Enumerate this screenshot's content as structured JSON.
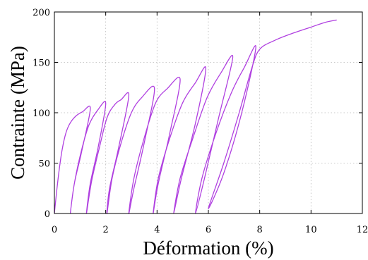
{
  "chart_data": {
    "type": "line",
    "title": "",
    "xlabel": "Déformation (%)",
    "ylabel": "Contrainte (MPa)",
    "xlim": [
      0,
      12
    ],
    "ylim": [
      0,
      200
    ],
    "xticks": [
      0,
      2,
      4,
      6,
      8,
      10,
      12
    ],
    "yticks": [
      0,
      50,
      100,
      150,
      200
    ],
    "x_tick_labels": [
      "0",
      "2",
      "4",
      "6",
      "8",
      "10",
      "12"
    ],
    "y_tick_labels": [
      "0",
      "50",
      "100",
      "150",
      "200"
    ],
    "grid": true,
    "legend": "none",
    "line_color": "#b040e0",
    "series": [
      {
        "values": [
          [
            0.0,
            0
          ],
          [
            0.08,
            20
          ],
          [
            0.18,
            42
          ],
          [
            0.3,
            63
          ],
          [
            0.45,
            80
          ],
          [
            0.62,
            90
          ],
          [
            0.85,
            97
          ],
          [
            1.1,
            101
          ],
          [
            1.4,
            104
          ],
          [
            1.05,
            60
          ],
          [
            0.78,
            30
          ],
          [
            0.62,
            0
          ],
          [
            0.78,
            30
          ],
          [
            1.05,
            62
          ],
          [
            1.35,
            88
          ],
          [
            1.7,
            103
          ],
          [
            2.0,
            109
          ],
          [
            1.7,
            65
          ],
          [
            1.4,
            30
          ],
          [
            1.25,
            0
          ],
          [
            1.45,
            32
          ],
          [
            1.75,
            65
          ],
          [
            2.05,
            95
          ],
          [
            2.35,
            108
          ],
          [
            2.6,
            113
          ],
          [
            2.9,
            117
          ],
          [
            2.5,
            65
          ],
          [
            2.15,
            25
          ],
          [
            2.05,
            0
          ],
          [
            2.25,
            35
          ],
          [
            2.6,
            70
          ],
          [
            3.0,
            100
          ],
          [
            3.4,
            115
          ],
          [
            3.9,
            124
          ],
          [
            3.5,
            70
          ],
          [
            3.1,
            25
          ],
          [
            2.9,
            0
          ],
          [
            3.1,
            35
          ],
          [
            3.5,
            75
          ],
          [
            3.95,
            110
          ],
          [
            4.4,
            124
          ],
          [
            4.9,
            133
          ],
          [
            4.5,
            80
          ],
          [
            4.05,
            30
          ],
          [
            3.85,
            0
          ],
          [
            4.05,
            35
          ],
          [
            4.5,
            75
          ],
          [
            5.0,
            110
          ],
          [
            5.5,
            130
          ],
          [
            5.9,
            144
          ],
          [
            5.5,
            90
          ],
          [
            4.95,
            35
          ],
          [
            4.65,
            0
          ],
          [
            4.9,
            35
          ],
          [
            5.4,
            75
          ],
          [
            5.95,
            115
          ],
          [
            6.5,
            140
          ],
          [
            6.95,
            155
          ],
          [
            6.4,
            95
          ],
          [
            5.85,
            35
          ],
          [
            5.5,
            0
          ],
          [
            5.75,
            35
          ],
          [
            6.3,
            80
          ],
          [
            6.9,
            120
          ],
          [
            7.4,
            145
          ],
          [
            7.85,
            165
          ],
          [
            7.3,
            100
          ],
          [
            6.6,
            40
          ],
          [
            6.0,
            5
          ],
          [
            6.6,
            50
          ],
          [
            7.2,
            100
          ],
          [
            7.7,
            145
          ],
          [
            8.0,
            163
          ],
          [
            8.6,
            172
          ],
          [
            9.3,
            179
          ],
          [
            10.0,
            185
          ],
          [
            10.6,
            190
          ],
          [
            11.0,
            192
          ]
        ]
      }
    ]
  }
}
